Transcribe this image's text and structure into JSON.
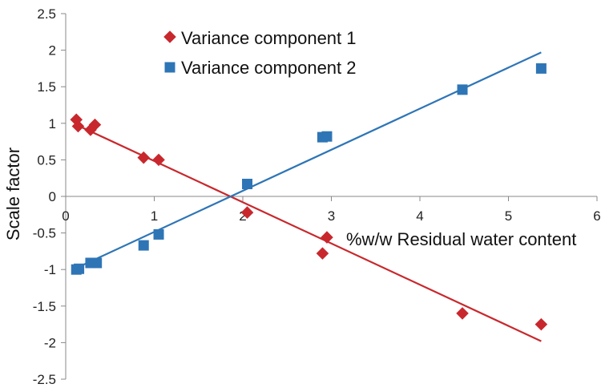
{
  "chart_data": {
    "type": "scatter",
    "title": "",
    "xlabel": "%w/w Residual water content",
    "ylabel": "Scale factor",
    "xlim": [
      0,
      6
    ],
    "ylim": [
      -2.5,
      2.5
    ],
    "x_ticks": [
      "0",
      "1",
      "2",
      "3",
      "4",
      "5",
      "6"
    ],
    "y_ticks": [
      "2.5",
      "2",
      "1.5",
      "1",
      "0.5",
      "0",
      "-0.5",
      "-1",
      "-1.5",
      "-2",
      "-2.5"
    ],
    "grid": false,
    "legend_position": "top-left",
    "series": [
      {
        "name": "Variance component 1",
        "marker": "diamond",
        "color": "#c8282d",
        "points": [
          [
            0.12,
            1.05
          ],
          [
            0.14,
            0.96
          ],
          [
            0.28,
            0.91
          ],
          [
            0.33,
            0.98
          ],
          [
            0.88,
            0.53
          ],
          [
            1.05,
            0.5
          ],
          [
            2.05,
            -0.22
          ],
          [
            2.9,
            -0.78
          ],
          [
            2.95,
            -0.56
          ],
          [
            4.48,
            -1.6
          ],
          [
            5.37,
            -1.75
          ]
        ],
        "trendline": [
          [
            0.12,
            0.98
          ],
          [
            5.37,
            -1.98
          ]
        ]
      },
      {
        "name": "Variance component 2",
        "marker": "square",
        "color": "#2e75b6",
        "points": [
          [
            0.12,
            -1.0
          ],
          [
            0.15,
            -0.99
          ],
          [
            0.28,
            -0.91
          ],
          [
            0.35,
            -0.91
          ],
          [
            0.88,
            -0.67
          ],
          [
            1.05,
            -0.52
          ],
          [
            2.05,
            0.17
          ],
          [
            2.9,
            0.81
          ],
          [
            2.95,
            0.82
          ],
          [
            4.48,
            1.46
          ],
          [
            5.37,
            1.75
          ]
        ],
        "trendline": [
          [
            0.12,
            -0.98
          ],
          [
            5.37,
            1.97
          ]
        ]
      }
    ]
  }
}
